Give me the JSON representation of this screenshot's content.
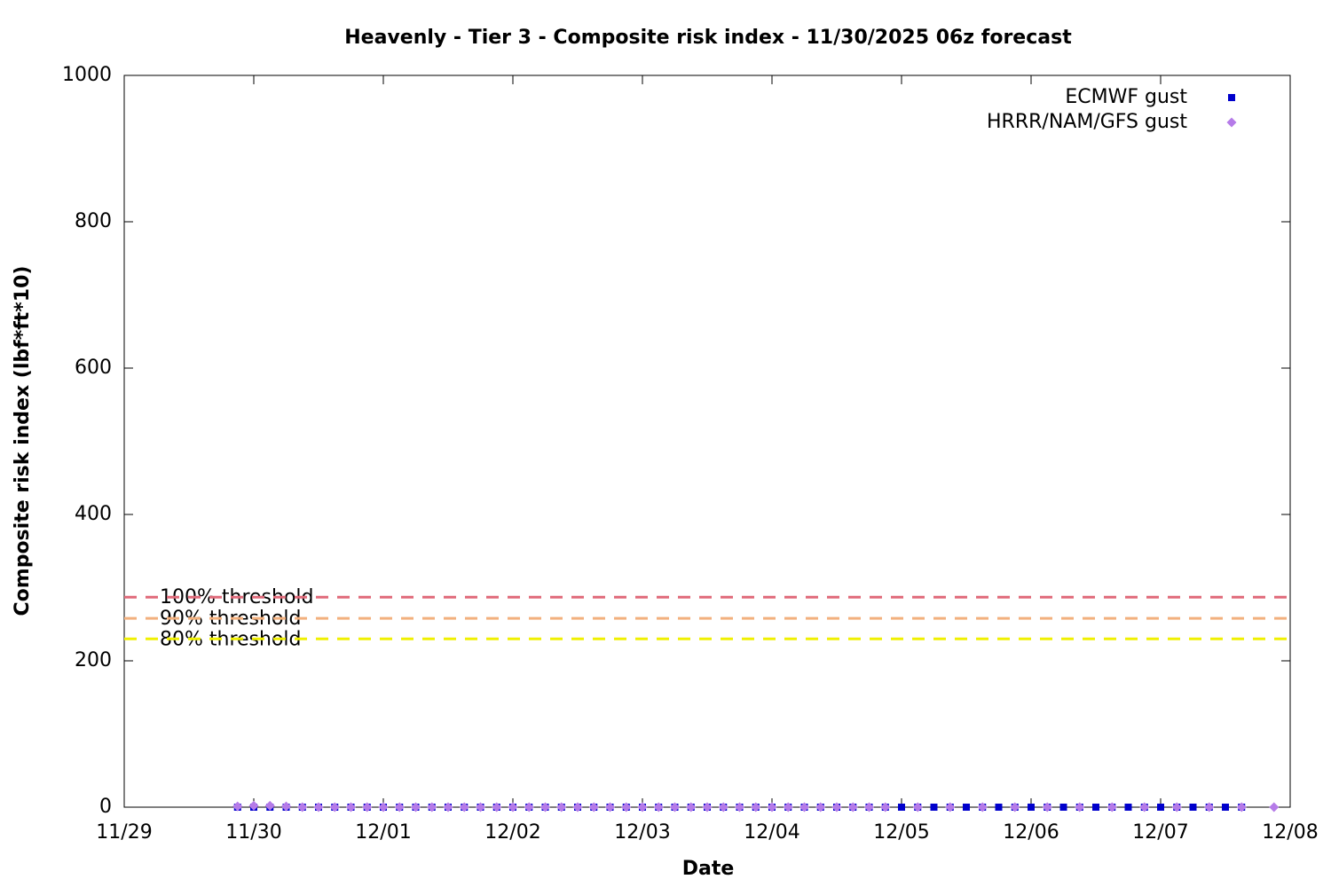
{
  "chart_data": {
    "type": "scatter",
    "title": "Heavenly - Tier 3 - Composite risk index - 11/30/2025 06z forecast",
    "x_label": "Date",
    "y_label": "Composite risk index (lbf*ft*10)",
    "xlim": [
      0,
      9
    ],
    "xticks": [
      {
        "value": 0,
        "label": "11/29"
      },
      {
        "value": 1,
        "label": "11/30"
      },
      {
        "value": 2,
        "label": "12/01"
      },
      {
        "value": 3,
        "label": "12/02"
      },
      {
        "value": 4,
        "label": "12/03"
      },
      {
        "value": 5,
        "label": "12/04"
      },
      {
        "value": 6,
        "label": "12/05"
      },
      {
        "value": 7,
        "label": "12/06"
      },
      {
        "value": 8,
        "label": "12/07"
      },
      {
        "value": 9,
        "label": "12/08"
      }
    ],
    "ylim": [
      0,
      1000
    ],
    "yticks": [
      0,
      200,
      400,
      600,
      800,
      1000
    ],
    "grid": false,
    "legend": "top-right",
    "thresholds": [
      {
        "label": "100% threshold",
        "value": 287,
        "color": "#e06a7a"
      },
      {
        "label": "90% threshold",
        "value": 258,
        "color": "#f2b07e"
      },
      {
        "label": "80% threshold",
        "value": 230,
        "color": "#f0f000"
      }
    ],
    "series": [
      {
        "name": "ECMWF gust",
        "color": "#0000cc",
        "marker": "square",
        "x": [
          0.875,
          1,
          1.125,
          1.25,
          1.375,
          1.5,
          1.625,
          1.75,
          1.875,
          2,
          2.125,
          2.25,
          2.375,
          2.5,
          2.625,
          2.75,
          2.875,
          3,
          3.125,
          3.25,
          3.375,
          3.5,
          3.625,
          3.75,
          3.875,
          4,
          4.125,
          4.25,
          4.375,
          4.5,
          4.625,
          4.75,
          4.875,
          5,
          5.125,
          5.25,
          5.375,
          5.5,
          5.625,
          5.75,
          5.875,
          6,
          6.125,
          6.25,
          6.375,
          6.5,
          6.625,
          6.75,
          6.875,
          7,
          7.125,
          7.25,
          7.375,
          7.5,
          7.625,
          7.75,
          7.875,
          8,
          8.125,
          8.25,
          8.375,
          8.5,
          8.625
        ],
        "values": [
          0,
          0,
          0,
          0,
          0,
          0,
          0,
          0,
          0,
          0,
          0,
          0,
          0,
          0,
          0,
          0,
          0,
          0,
          0,
          0,
          0,
          0,
          0,
          0,
          0,
          0,
          0,
          0,
          0,
          0,
          0,
          0,
          0,
          0,
          0,
          0,
          0,
          0,
          0,
          0,
          0,
          0,
          0,
          0,
          0,
          0,
          0,
          0,
          0,
          0,
          0,
          0,
          0,
          0,
          0,
          0,
          0,
          0,
          0,
          0,
          0,
          0,
          0
        ]
      },
      {
        "name": "HRRR/NAM/GFS gust",
        "color": "#b57be8",
        "marker": "diamond",
        "x": [
          0.875,
          1,
          1.125,
          1.25,
          1.375,
          1.5,
          1.625,
          1.75,
          1.875,
          2,
          2.125,
          2.25,
          2.375,
          2.5,
          2.625,
          2.75,
          2.875,
          3,
          3.125,
          3.25,
          3.375,
          3.5,
          3.625,
          3.75,
          3.875,
          4,
          4.125,
          4.25,
          4.375,
          4.5,
          4.625,
          4.75,
          4.875,
          5,
          5.125,
          5.25,
          5.375,
          5.5,
          5.625,
          5.75,
          5.875,
          6.125,
          6.375,
          6.625,
          6.875,
          7.125,
          7.375,
          7.625,
          7.875,
          8.125,
          8.375,
          8.625,
          8.875
        ],
        "values": [
          1,
          2,
          2,
          1,
          0,
          0,
          0,
          0,
          0,
          0,
          0,
          0,
          0,
          0,
          0,
          0,
          0,
          0,
          0,
          0,
          0,
          0,
          0,
          0,
          0,
          0,
          0,
          0,
          0,
          0,
          0,
          0,
          0,
          0,
          0,
          0,
          0,
          0,
          0,
          0,
          0,
          0,
          0,
          0,
          0,
          0,
          0,
          0,
          0,
          0,
          0,
          0,
          0
        ]
      }
    ]
  }
}
